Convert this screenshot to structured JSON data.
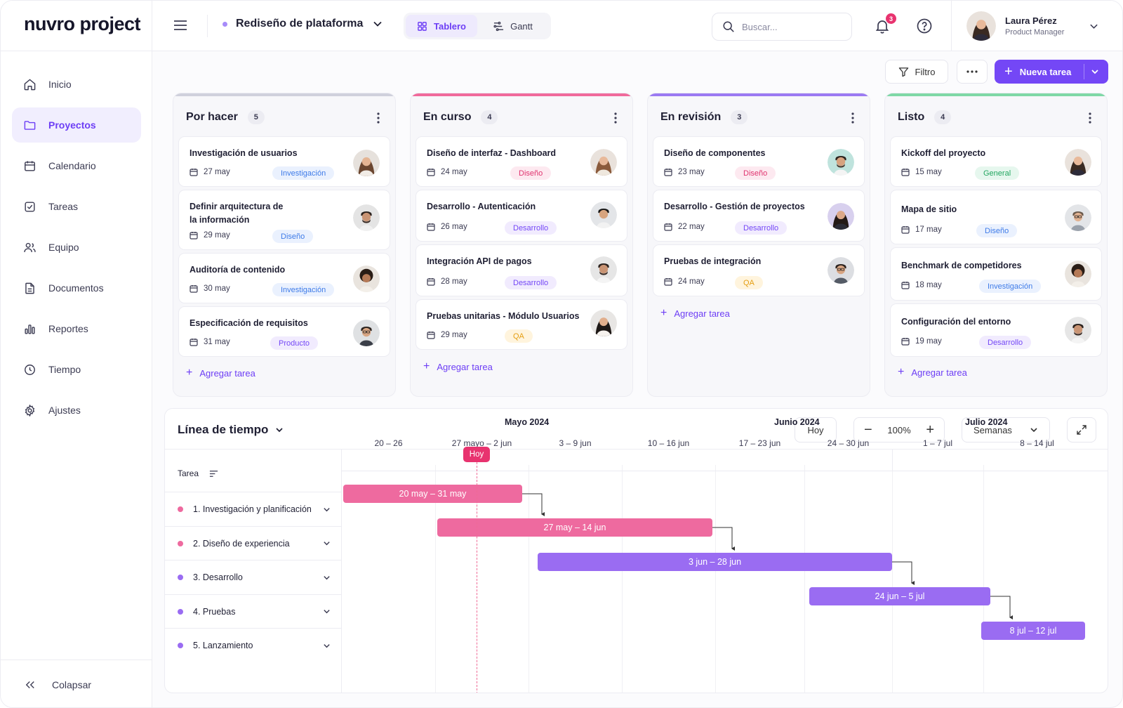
{
  "brand": {
    "logo": "nuvro project"
  },
  "sidebar": {
    "items": [
      {
        "label": "Inicio",
        "icon": "home-icon",
        "active": false
      },
      {
        "label": "Proyectos",
        "icon": "folder-icon",
        "active": true
      },
      {
        "label": "Calendario",
        "icon": "calendar-icon",
        "active": false
      },
      {
        "label": "Tareas",
        "icon": "checkbox-icon",
        "active": false
      },
      {
        "label": "Equipo",
        "icon": "users-icon",
        "active": false
      },
      {
        "label": "Documentos",
        "icon": "document-icon",
        "active": false
      },
      {
        "label": "Reportes",
        "icon": "bar-chart-icon",
        "active": false
      },
      {
        "label": "Tiempo",
        "icon": "clock-icon",
        "active": false
      },
      {
        "label": "Ajustes",
        "icon": "gear-icon",
        "active": false
      }
    ],
    "collapse_label": "Colapsar"
  },
  "header": {
    "project": "Rediseño de plataforma",
    "views": {
      "board": "Tablero",
      "gantt": "Gantt"
    },
    "search_placeholder": "Buscar...",
    "notifications": "3",
    "user": {
      "name": "Laura Pérez",
      "role": "Product Manager"
    }
  },
  "toolbar": {
    "filter": "Filtro",
    "new_task": "Nueva tarea"
  },
  "colors": {
    "accent": "#7447f6",
    "todo": "#cfd0dc",
    "in_progress": "#f06a9b",
    "review": "#9b7af2",
    "done": "#7fd8a6"
  },
  "board": {
    "add_task": "Agregar tarea",
    "columns": [
      {
        "title": "Por hacer",
        "count": "5",
        "cards": [
          {
            "title": "Investigación de usuarios",
            "date": "27 may",
            "tag": "Investigación"
          },
          {
            "title": "Definir arquitectura de la información",
            "date": "29 may",
            "tag": "Diseño"
          },
          {
            "title": "Auditoría de contenido",
            "date": "30 may",
            "tag": "Investigación"
          },
          {
            "title": "Especificación de requisitos",
            "date": "31 may",
            "tag": "Producto"
          }
        ]
      },
      {
        "title": "En curso",
        "count": "4",
        "cards": [
          {
            "title": "Diseño de interfaz - Dashboard",
            "date": "24 may",
            "tag": "Diseño"
          },
          {
            "title": "Desarrollo - Autenticación",
            "date": "26 may",
            "tag": "Desarrollo"
          },
          {
            "title": "Integración API de pagos",
            "date": "28 may",
            "tag": "Desarrollo"
          },
          {
            "title": "Pruebas unitarias - Módulo Usuarios",
            "date": "29 may",
            "tag": "QA"
          }
        ]
      },
      {
        "title": "En revisión",
        "count": "3",
        "cards": [
          {
            "title": "Diseño de componentes",
            "date": "23 may",
            "tag": "Diseño"
          },
          {
            "title": "Desarrollo - Gestión de proyectos",
            "date": "22 may",
            "tag": "Desarrollo"
          },
          {
            "title": "Pruebas de integración",
            "date": "24 may",
            "tag": "QA"
          }
        ]
      },
      {
        "title": "Listo",
        "count": "4",
        "cards": [
          {
            "title": "Kickoff del proyecto",
            "date": "15 may",
            "tag": "General"
          },
          {
            "title": "Mapa de sitio",
            "date": "17 may",
            "tag": "Diseño"
          },
          {
            "title": "Benchmark de competidores",
            "date": "18 may",
            "tag": "Investigación"
          },
          {
            "title": "Configuración del entorno",
            "date": "19 may",
            "tag": "Desarrollo"
          }
        ]
      }
    ]
  },
  "timeline": {
    "title": "Línea de tiempo",
    "today_button": "Hoy",
    "zoom": "100%",
    "scale": "Semanas",
    "task_header": "Tarea",
    "today_marker": "Hoy",
    "months": [
      "Mayo 2024",
      "Junio 2024",
      "Julio 2024"
    ],
    "weeks": [
      "20 – 26",
      "27 mayo – 2 jun",
      "3 – 9 jun",
      "10 – 16 jun",
      "17 – 23 jun",
      "24 – 30 jun",
      "1 – 7 jul",
      "8 – 14 jul"
    ],
    "tasks": [
      {
        "name": "1. Investigación y planificación",
        "range": "20 may – 31 may",
        "color": "#ee6a9f"
      },
      {
        "name": "2. Diseño de experiencia",
        "range": "27 may – 14 jun",
        "color": "#ee6a9f"
      },
      {
        "name": "3. Desarrollo",
        "range": "3 jun – 28 jun",
        "color": "#9a6cf2"
      },
      {
        "name": "4. Pruebas",
        "range": "24 jun – 5 jul",
        "color": "#9a6cf2"
      },
      {
        "name": "5. Lanzamiento",
        "range": "8 jul – 12 jul",
        "color": "#9a6cf2"
      }
    ]
  }
}
